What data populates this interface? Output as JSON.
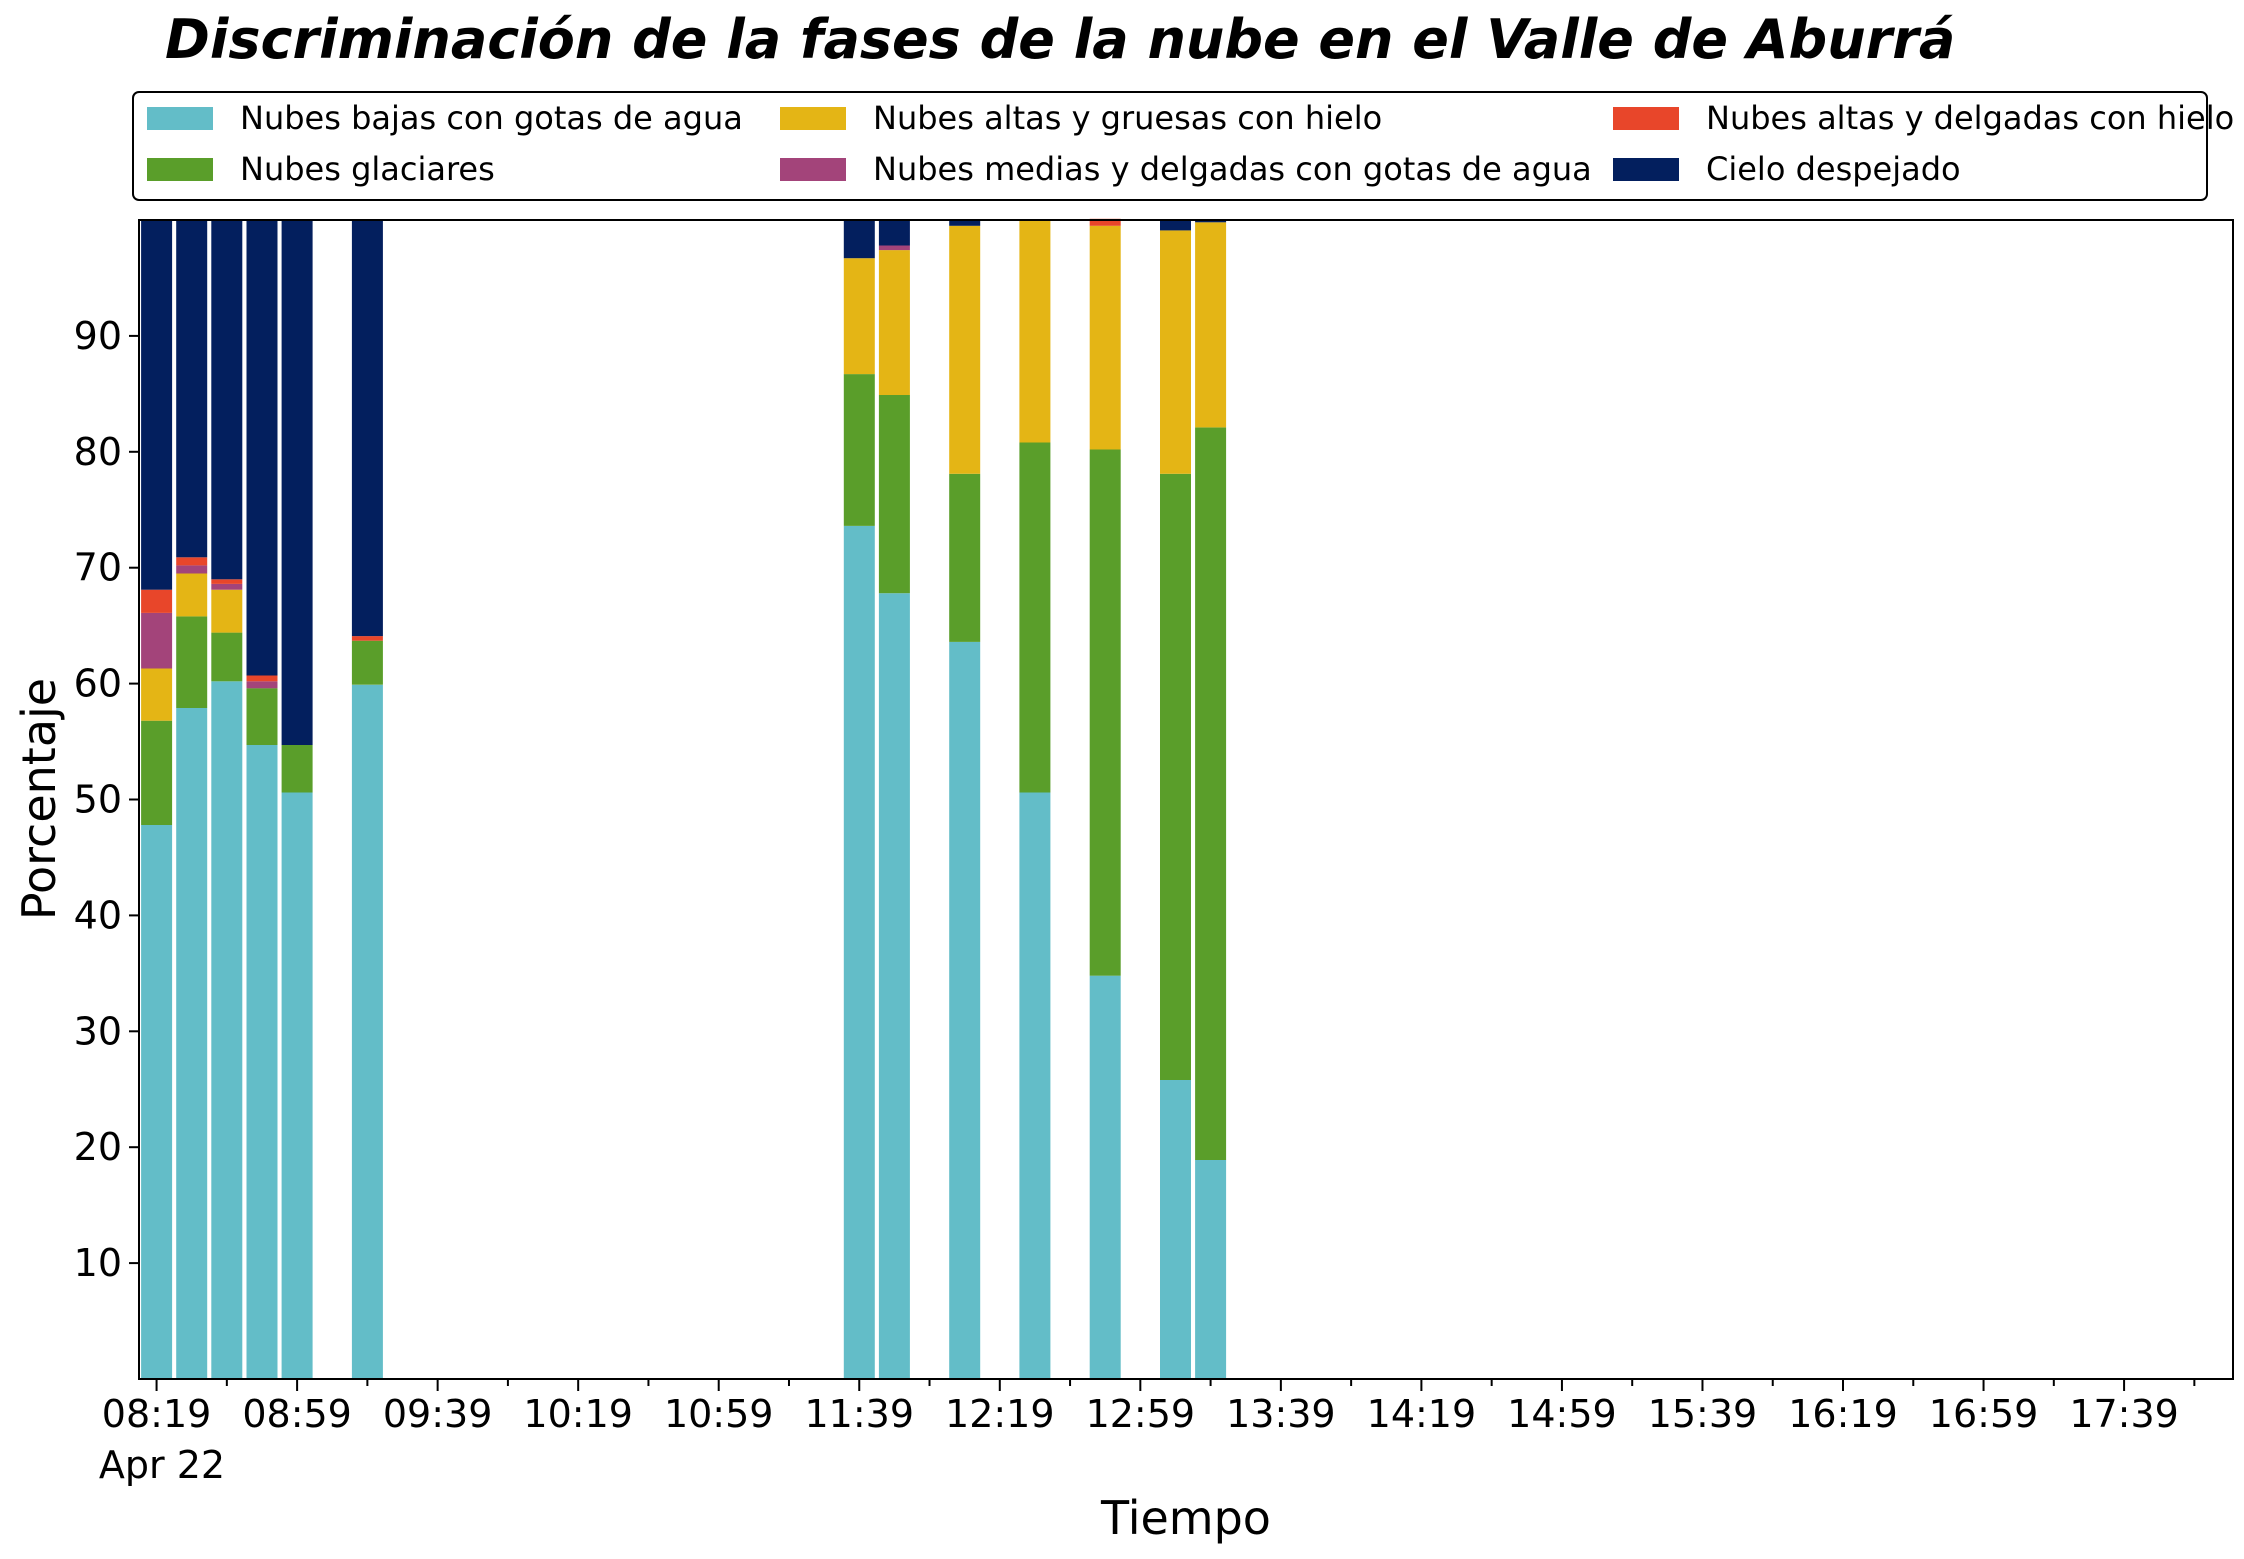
{
  "chart_data": {
    "type": "bar",
    "stacked": true,
    "title": "Discriminación de la fases de la nube en el Valle de Aburrá",
    "xlabel": "Tiempo",
    "ylabel": "Porcentaje",
    "ylim": [
      0,
      100
    ],
    "yticks": [
      10,
      20,
      30,
      40,
      50,
      60,
      70,
      80,
      90
    ],
    "xticks": [
      "08:19",
      "08:59",
      "09:39",
      "10:19",
      "10:59",
      "11:39",
      "12:19",
      "12:59",
      "13:39",
      "14:19",
      "14:59",
      "15:39",
      "16:19",
      "16:59",
      "17:39"
    ],
    "xtick_sublabel": "Apr 22",
    "legend_position": "top",
    "grid": false,
    "categories": [
      "08:19",
      "08:29",
      "08:39",
      "08:49",
      "08:59",
      "09:19",
      "11:39",
      "11:49",
      "12:09",
      "12:29",
      "12:49",
      "13:09",
      "13:19"
    ],
    "series": [
      {
        "name": "Nubes bajas con gotas de agua",
        "color": "#63bdc8",
        "values": [
          47.8,
          57.9,
          60.2,
          54.7,
          50.6,
          59.9,
          73.6,
          67.8,
          63.6,
          50.6,
          34.8,
          25.8,
          18.9
        ]
      },
      {
        "name": "Nubes glaciares",
        "color": "#5a9e2a",
        "values": [
          9.0,
          7.9,
          4.2,
          4.9,
          4.1,
          3.8,
          13.1,
          17.1,
          14.5,
          30.2,
          45.4,
          52.3,
          63.2
        ]
      },
      {
        "name": "Nubes altas y gruesas con hielo",
        "color": "#e4b515",
        "values": [
          4.5,
          3.7,
          3.7,
          0.0,
          0.0,
          0.0,
          10.0,
          12.5,
          21.4,
          19.2,
          19.3,
          21.0,
          17.7
        ]
      },
      {
        "name": "Nubes medias y delgadas con gotas de agua",
        "color": "#a3447a",
        "values": [
          4.8,
          0.7,
          0.5,
          0.6,
          0.0,
          0.0,
          0.0,
          0.4,
          0.0,
          0.0,
          0.0,
          0.0,
          0.0
        ]
      },
      {
        "name": "Nubes altas y delgadas con hielo",
        "color": "#e8462a",
        "values": [
          2.0,
          0.7,
          0.4,
          0.5,
          0.0,
          0.4,
          0.0,
          0.0,
          0.0,
          0.0,
          0.6,
          0.0,
          0.0
        ]
      },
      {
        "name": "Cielo despejado",
        "color": "#031f5e",
        "values": [
          31.9,
          29.1,
          31.0,
          39.3,
          45.3,
          35.9,
          3.3,
          2.2,
          0.5,
          0.0,
          0.0,
          0.9,
          0.2
        ]
      }
    ]
  }
}
